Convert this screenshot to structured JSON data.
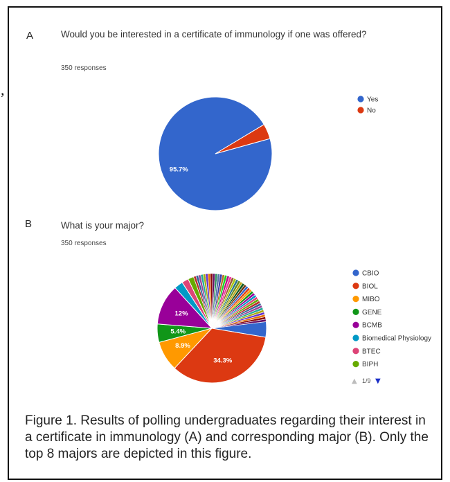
{
  "stray_mark": ",",
  "chart_data": [
    {
      "type": "pie",
      "panel": "A",
      "title": "Would you be interested in a certificate of immunology if one was offered?",
      "subtitle": "350 responses",
      "slices": [
        {
          "label": "Yes",
          "value": 95.7,
          "color": "#3366cc",
          "data_label": "95.7%"
        },
        {
          "label": "No",
          "value": 4.3,
          "color": "#dc3912",
          "data_label": ""
        }
      ],
      "legend_position": "right"
    },
    {
      "type": "pie",
      "panel": "B",
      "title": "What is your major?",
      "subtitle": "350 responses",
      "slices": [
        {
          "label": "CBIO",
          "value": 4.6,
          "color": "#3366cc",
          "data_label": ""
        },
        {
          "label": "BIOL",
          "value": 34.3,
          "color": "#dc3912",
          "data_label": "34.3%"
        },
        {
          "label": "MIBO",
          "value": 8.9,
          "color": "#ff9900",
          "data_label": "8.9%"
        },
        {
          "label": "GENE",
          "value": 5.4,
          "color": "#109618",
          "data_label": "5.4%"
        },
        {
          "label": "BCMB",
          "value": 12,
          "color": "#990099",
          "data_label": "12%"
        },
        {
          "label": "Biomedical Physiology",
          "value": 2.6,
          "color": "#0099c6",
          "data_label": ""
        },
        {
          "label": "BTEC",
          "value": 2.0,
          "color": "#dd4477",
          "data_label": ""
        },
        {
          "label": "BIPH",
          "value": 1.7,
          "color": "#66aa00",
          "data_label": ""
        }
      ],
      "other_small_slices": {
        "count": 40,
        "total_value": 28.5,
        "colors": [
          "#b82e2e",
          "#316395",
          "#994499",
          "#22aa99",
          "#aaaa11",
          "#6633cc",
          "#e67300",
          "#8b0707",
          "#651067",
          "#329262",
          "#5574a6",
          "#3b3eac",
          "#b77322",
          "#16d620",
          "#b91383",
          "#f4359e",
          "#9c5935",
          "#a9c413",
          "#2a778d",
          "#668d1c",
          "#bea413",
          "#0c5922",
          "#743411",
          "#3366cc",
          "#dc3912",
          "#ff9900",
          "#109618",
          "#990099",
          "#0099c6",
          "#dd4477",
          "#66aa00",
          "#b82e2e",
          "#316395",
          "#994499",
          "#22aa99",
          "#aaaa11",
          "#6633cc",
          "#e67300",
          "#8b0707",
          "#651067"
        ]
      },
      "legend_position": "right",
      "pager": {
        "label": "1/9",
        "up_arrow": "▲",
        "down_arrow": "▼"
      }
    }
  ],
  "caption": "Figure 1. Results of polling undergraduates regarding their interest in a certificate in immunology (A) and corresponding major (B). Only the top 8 majors are depicted in this figure."
}
